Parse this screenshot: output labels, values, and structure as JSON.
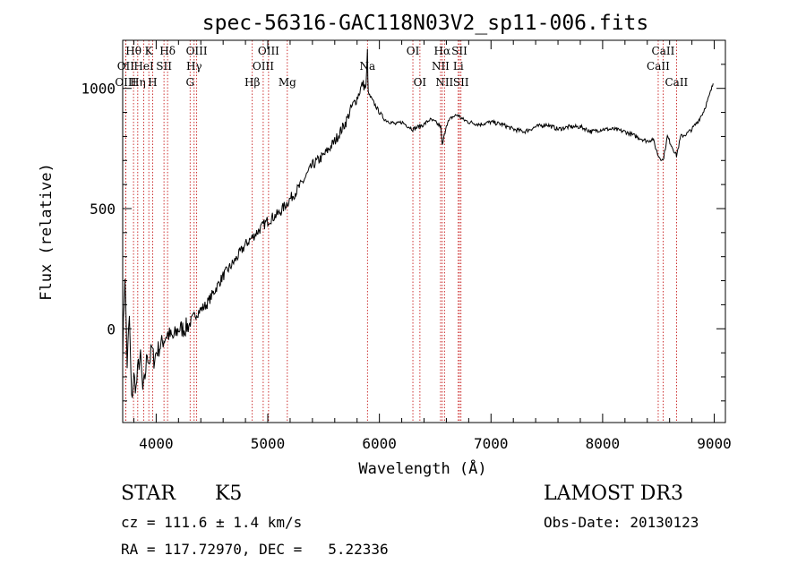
{
  "chart_data": {
    "type": "line",
    "title": "spec-56316-GAC118N03V2_sp11-006.fits",
    "xlabel": "Wavelength (Å)",
    "ylabel": "Flux (relative)",
    "xlim": [
      3700,
      9100
    ],
    "ylim": [
      -390,
      1200
    ],
    "xticks": [
      4000,
      5000,
      6000,
      7000,
      8000,
      9000
    ],
    "xtick_labels": [
      "4000",
      "5000",
      "6000",
      "7000",
      "8000",
      "9000"
    ],
    "yticks": [
      0,
      500,
      1000
    ],
    "ytick_labels": [
      "0",
      "500",
      "1000"
    ],
    "grid": false,
    "series": [
      {
        "name": "spectrum",
        "x": [
          3700,
          3720,
          3740,
          3760,
          3780,
          3800,
          3820,
          3840,
          3860,
          3880,
          3900,
          3920,
          3940,
          3960,
          3980,
          4000,
          4050,
          4100,
          4150,
          4200,
          4250,
          4300,
          4350,
          4400,
          4450,
          4500,
          4600,
          4700,
          4800,
          4900,
          5000,
          5100,
          5200,
          5300,
          5400,
          5500,
          5600,
          5700,
          5750,
          5800,
          5850,
          5880,
          5893,
          5900,
          5950,
          6000,
          6050,
          6100,
          6150,
          6200,
          6250,
          6300,
          6350,
          6400,
          6450,
          6500,
          6550,
          6563,
          6600,
          6650,
          6700,
          6750,
          6800,
          6900,
          7000,
          7100,
          7200,
          7300,
          7400,
          7500,
          7600,
          7700,
          7800,
          7900,
          8000,
          8100,
          8200,
          8300,
          8400,
          8450,
          8498,
          8542,
          8580,
          8620,
          8662,
          8700,
          8750,
          8800,
          8850,
          8900,
          8950,
          8990
        ],
        "y": [
          -100,
          230,
          -150,
          50,
          -300,
          -200,
          -250,
          -150,
          -120,
          -260,
          -200,
          -100,
          -140,
          -80,
          -130,
          -100,
          -60,
          -20,
          -40,
          0,
          0,
          20,
          60,
          80,
          100,
          140,
          220,
          280,
          350,
          400,
          450,
          480,
          540,
          600,
          680,
          720,
          780,
          860,
          920,
          960,
          1020,
          1000,
          1150,
          980,
          940,
          900,
          870,
          860,
          850,
          860,
          845,
          830,
          840,
          850,
          870,
          860,
          840,
          760,
          850,
          880,
          890,
          870,
          860,
          850,
          860,
          850,
          830,
          820,
          840,
          850,
          830,
          840,
          840,
          820,
          830,
          830,
          820,
          800,
          780,
          790,
          720,
          700,
          800,
          760,
          720,
          800,
          810,
          830,
          860,
          900,
          960,
          1020
        ]
      }
    ],
    "lines": [
      {
        "label": "Hθ",
        "x": 3797,
        "row": 1
      },
      {
        "label": "OII",
        "x": 3727,
        "row": 2
      },
      {
        "label": "OIII",
        "x": 3727,
        "row": 3
      },
      {
        "label": "Hη",
        "x": 3835,
        "row": 3
      },
      {
        "label": "HeI",
        "x": 3889,
        "row": 2
      },
      {
        "label": "K",
        "x": 3934,
        "row": 1
      },
      {
        "label": "H",
        "x": 3968,
        "row": 3
      },
      {
        "label": "SII",
        "x": 4070,
        "row": 2
      },
      {
        "label": "Hδ",
        "x": 4102,
        "row": 1
      },
      {
        "label": "G",
        "x": 4304,
        "row": 3
      },
      {
        "label": "OIII",
        "x": 4363,
        "row": 1
      },
      {
        "label": "Hγ",
        "x": 4340,
        "row": 2
      },
      {
        "label": "Hβ",
        "x": 4861,
        "row": 3
      },
      {
        "label": "OIII",
        "x": 4959,
        "row": 2
      },
      {
        "label": "OIII",
        "x": 5007,
        "row": 1
      },
      {
        "label": "Mg",
        "x": 5175,
        "row": 3
      },
      {
        "label": "Na",
        "x": 5893,
        "row": 2
      },
      {
        "label": "OI",
        "x": 6300,
        "row": 1
      },
      {
        "label": "OI",
        "x": 6363,
        "row": 3
      },
      {
        "label": "NII",
        "x": 6548,
        "row": 2
      },
      {
        "label": "Hα",
        "x": 6563,
        "row": 1
      },
      {
        "label": "NII",
        "x": 6583,
        "row": 3
      },
      {
        "label": "SII",
        "x": 6717,
        "row": 1
      },
      {
        "label": "Li",
        "x": 6707,
        "row": 2
      },
      {
        "label": "SII",
        "x": 6731,
        "row": 3
      },
      {
        "label": "CaII",
        "x": 8498,
        "row": 2
      },
      {
        "label": "CaII",
        "x": 8542,
        "row": 1
      },
      {
        "label": "CaII",
        "x": 8662,
        "row": 3
      }
    ]
  },
  "footer": {
    "object_type": "STAR",
    "subclass": "K5",
    "survey": "LAMOST DR3",
    "redshift": "cz = 111.6 ± 1.4 km/s",
    "obs_date": "Obs-Date: 20130123",
    "coords": "RA = 117.72970, DEC =   5.22336"
  }
}
